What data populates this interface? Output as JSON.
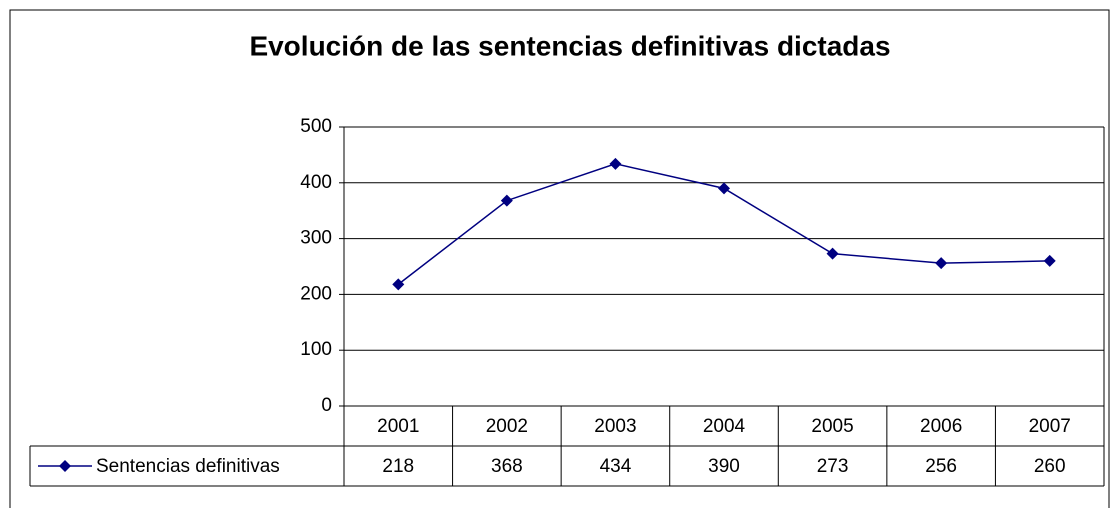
{
  "chart_data": {
    "type": "line",
    "title": "Evolución de las sentencias definitivas dictadas",
    "categories": [
      "2001",
      "2002",
      "2003",
      "2004",
      "2005",
      "2006",
      "2007"
    ],
    "series": [
      {
        "name": "Sentencias definitivas",
        "color": "#000080",
        "values": [
          218,
          368,
          434,
          390,
          273,
          256,
          260
        ]
      }
    ],
    "ylim": [
      0,
      500
    ],
    "yticks": [
      0,
      100,
      200,
      300,
      400,
      500
    ],
    "grid": true,
    "data_table": true
  }
}
